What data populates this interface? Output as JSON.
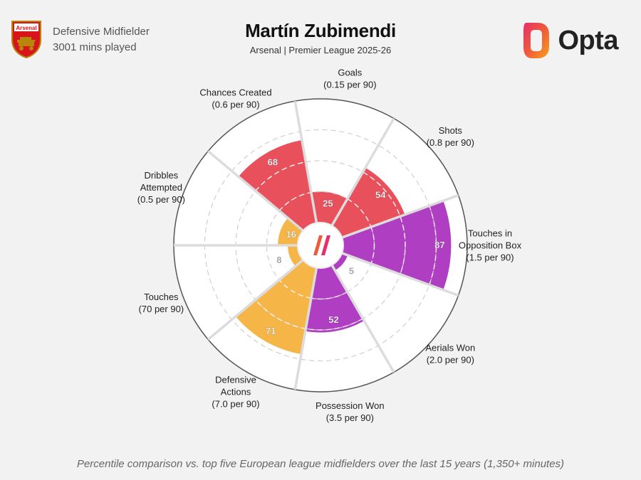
{
  "header": {
    "club_logo_text": "Arsenal",
    "position": "Defensive Midfielder",
    "minutes": "3001 mins played",
    "title": "Martín Zubimendi",
    "subtitle": "Arsenal | Premier League 2025-26",
    "brand": "Opta"
  },
  "colors": {
    "attacking": "#e8505b",
    "possession": "#f5b547",
    "defending": "#b03ec2",
    "background": "#f2f2f2"
  },
  "chart_data": {
    "type": "polar-bar",
    "max": 100,
    "metrics": [
      {
        "name": "Goals",
        "label": [
          "Goals",
          "(0.15 per 90)"
        ],
        "value": 25,
        "group": "attacking"
      },
      {
        "name": "Shots",
        "label": [
          "Shots",
          "(0.8 per 90)"
        ],
        "value": 54,
        "group": "attacking"
      },
      {
        "name": "Touches in Opposition Box",
        "label": [
          "Touches in",
          "Opposition Box",
          "(1.5 per 90)"
        ],
        "value": 87,
        "group": "defending"
      },
      {
        "name": "Aerials Won",
        "label": [
          "Aerials Won",
          "(2.0 per 90)"
        ],
        "value": 5,
        "group": "defending"
      },
      {
        "name": "Possession Won",
        "label": [
          "Possession Won",
          "(3.5 per 90)"
        ],
        "value": 52,
        "group": "defending"
      },
      {
        "name": "Defensive Actions",
        "label": [
          "Defensive",
          "Actions",
          "(7.0 per 90)"
        ],
        "value": 71,
        "group": "possession"
      },
      {
        "name": "Touches",
        "label": [
          "Touches",
          "(70 per 90)"
        ],
        "value": 8,
        "group": "possession"
      },
      {
        "name": "Dribbles Attempted",
        "label": [
          "Dribbles",
          "Attempted",
          "(0.5 per 90)"
        ],
        "value": 16,
        "group": "possession"
      },
      {
        "name": "Chances Created",
        "label": [
          "Chances Created",
          "(0.6 per 90)"
        ],
        "value": 68,
        "group": "attacking"
      }
    ]
  },
  "footnote": "Percentile comparison vs. top five European league midfielders over the last 15 years (1,350+ minutes)"
}
